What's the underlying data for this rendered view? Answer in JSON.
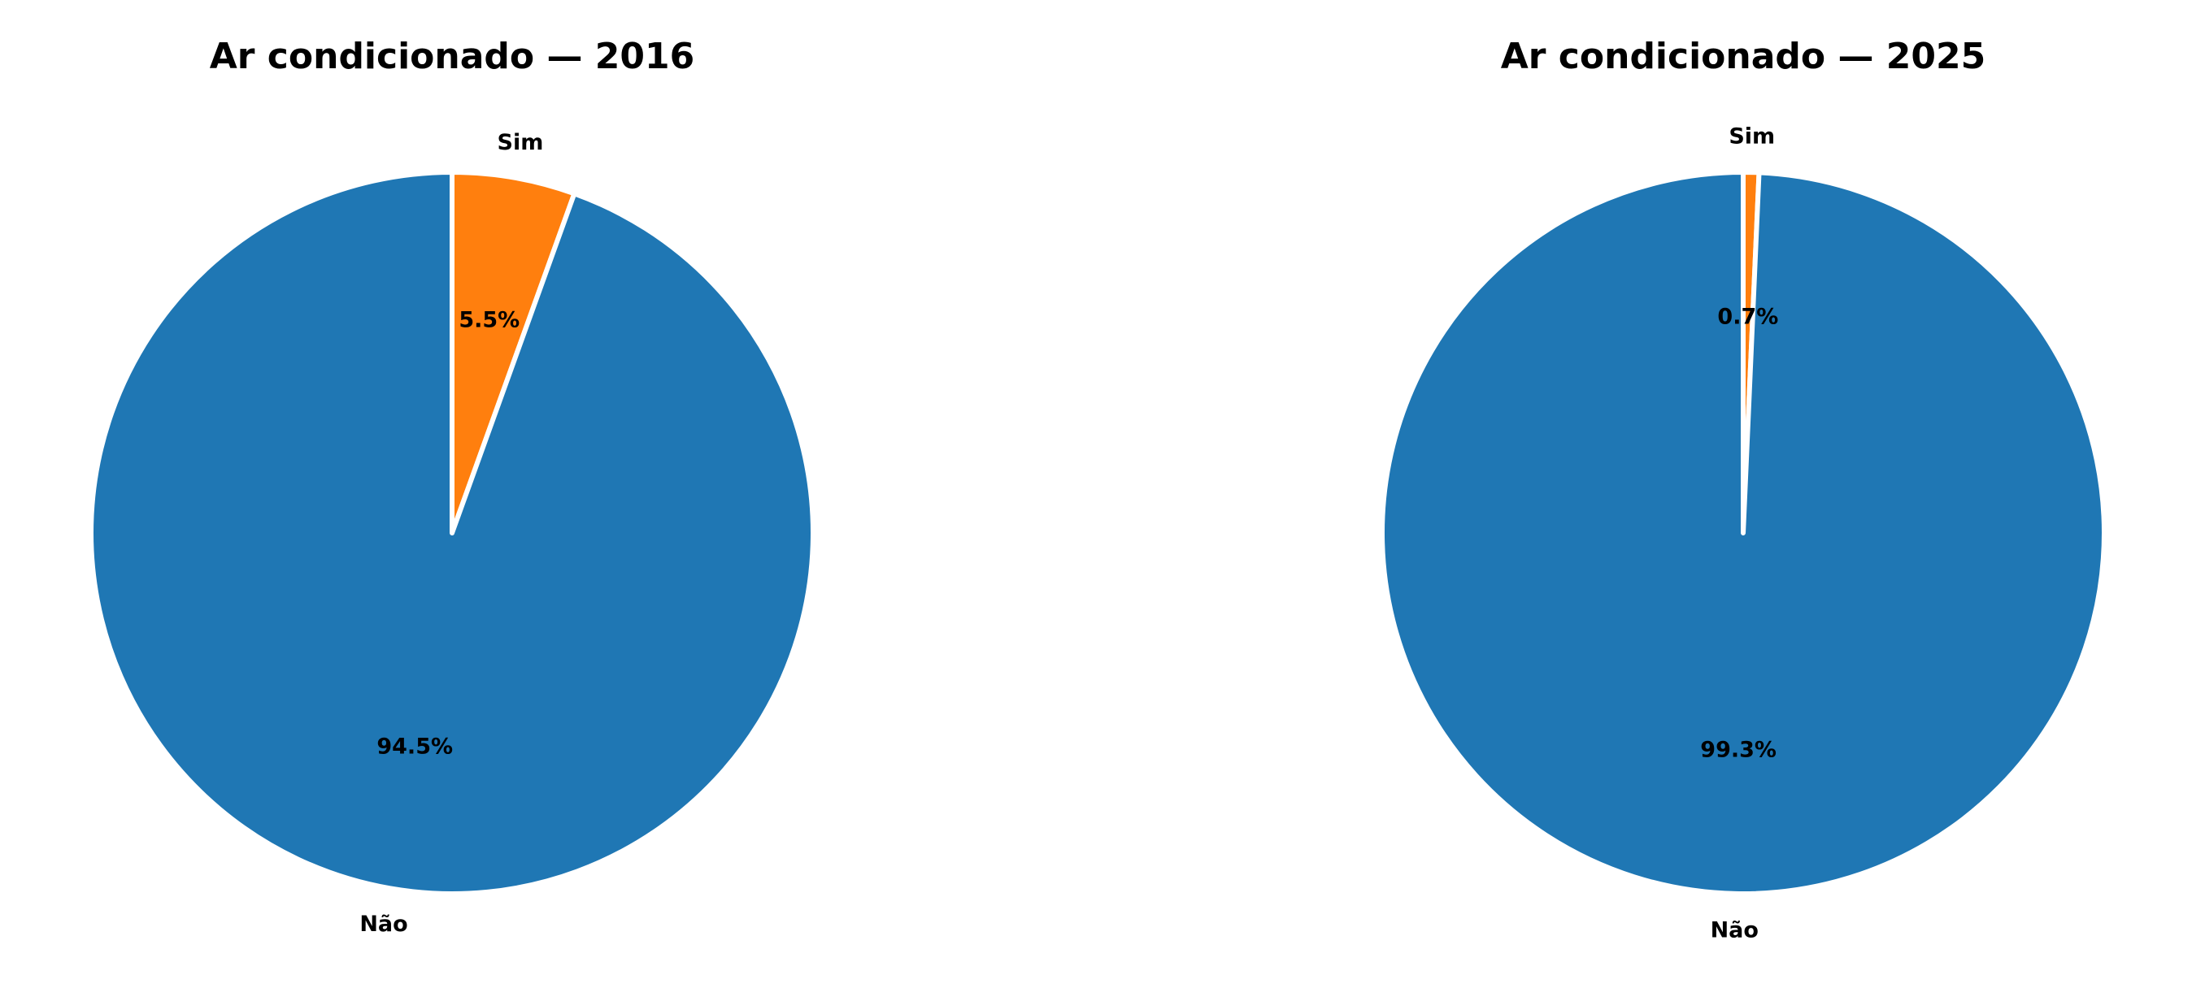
{
  "chart_data": [
    {
      "type": "pie",
      "title": "Ar condicionado — 2016",
      "slices": [
        {
          "label": "Sim",
          "value": 5.5,
          "pct_label": "5.5%",
          "color": "#ff7f0e"
        },
        {
          "label": "Não",
          "value": 94.5,
          "pct_label": "94.5%",
          "color": "#1f77b4"
        }
      ]
    },
    {
      "type": "pie",
      "title": "Ar condicionado — 2025",
      "slices": [
        {
          "label": "Sim",
          "value": 0.7,
          "pct_label": "0.7%",
          "color": "#ff7f0e"
        },
        {
          "label": "Não",
          "value": 99.3,
          "pct_label": "99.3%",
          "color": "#1f77b4"
        }
      ]
    }
  ]
}
